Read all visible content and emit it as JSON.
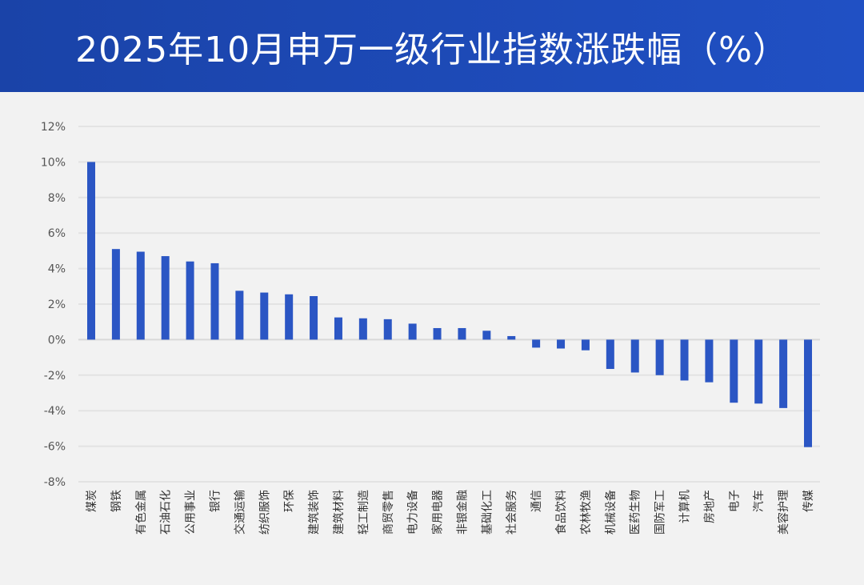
{
  "header": {
    "title": "2025年10月申万一级行业指数涨跌幅（%）"
  },
  "colors": {
    "bar": "#2b56c4",
    "header": "#1f4fc0",
    "grid": "#e3e3e3",
    "background": "#f2f2f2"
  },
  "chart_data": {
    "type": "bar",
    "title": "2025年10月申万一级行业指数涨跌幅（%）",
    "categories": [
      "煤炭",
      "钢铁",
      "有色金属",
      "石油石化",
      "公用事业",
      "银行",
      "交通运输",
      "纺织服饰",
      "环保",
      "建筑装饰",
      "建筑材料",
      "轻工制造",
      "商贸零售",
      "电力设备",
      "家用电器",
      "非银金融",
      "基础化工",
      "社会服务",
      "通信",
      "食品饮料",
      "农林牧渔",
      "机械设备",
      "医药生物",
      "国防军工",
      "计算机",
      "房地产",
      "电子",
      "汽车",
      "美容护理",
      "传媒"
    ],
    "values": [
      10.0,
      5.1,
      4.95,
      4.7,
      4.4,
      4.3,
      2.75,
      2.65,
      2.55,
      2.45,
      1.25,
      1.2,
      1.15,
      0.9,
      0.65,
      0.65,
      0.5,
      0.2,
      -0.45,
      -0.5,
      -0.6,
      -1.65,
      -1.85,
      -2.0,
      -2.3,
      -2.4,
      -3.55,
      -3.6,
      -3.85,
      -6.05
    ],
    "ylim": [
      -8,
      12
    ],
    "yticks": [
      -8,
      -6,
      -4,
      -2,
      0,
      2,
      4,
      6,
      8,
      10,
      12
    ],
    "ytick_labels": [
      "-8%",
      "-6%",
      "-4%",
      "-2%",
      "0%",
      "2%",
      "4%",
      "6%",
      "8%",
      "10%",
      "12%"
    ],
    "grid": true,
    "legend": "none"
  }
}
